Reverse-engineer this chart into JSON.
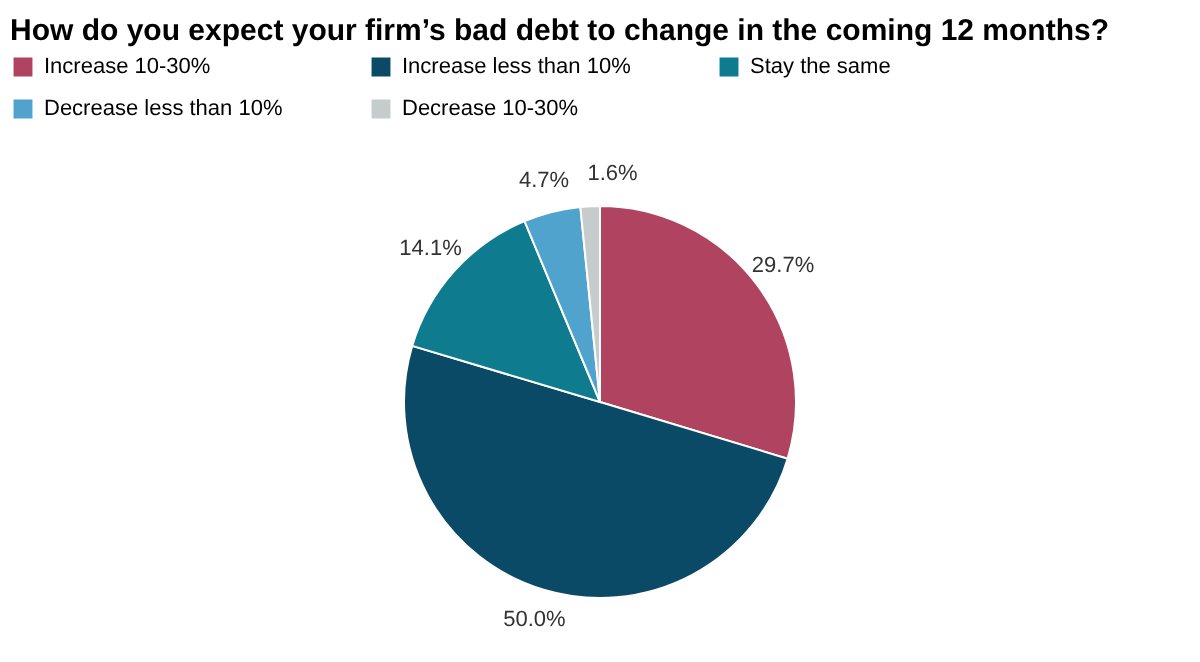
{
  "chart_data": {
    "type": "pie",
    "title": "How do you expect your firm’s bad debt to change in the coming 12 months?",
    "categories": [
      "Increase 10-30%",
      "Increase less than 10%",
      "Stay the same",
      "Decrease less than 10%",
      "Decrease 10-30%"
    ],
    "values": [
      29.7,
      50.0,
      14.1,
      4.7,
      1.6
    ],
    "value_labels": [
      "29.7%",
      "50.0%",
      "14.1%",
      "4.7%",
      "1.6%"
    ],
    "colors": [
      "#b0435f",
      "#0b4a66",
      "#0f7b8f",
      "#4fa3cc",
      "#c6cccc"
    ],
    "legend": "top"
  }
}
